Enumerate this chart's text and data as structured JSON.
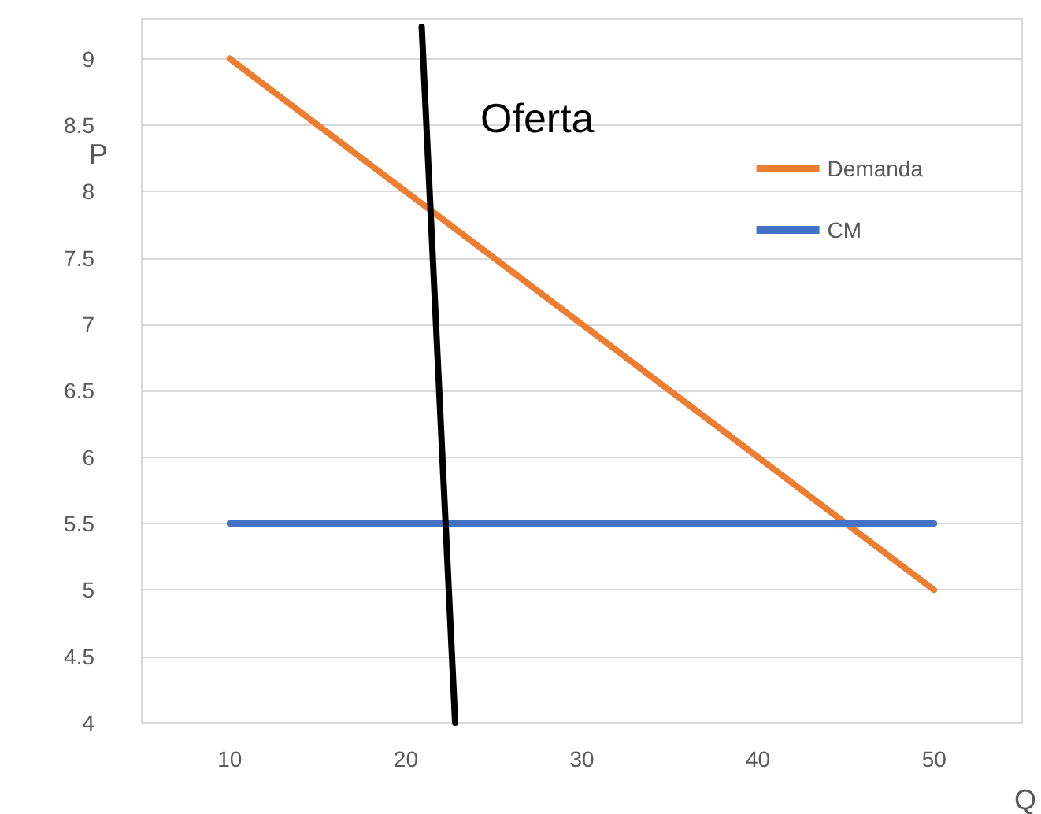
{
  "chart_data": {
    "type": "line",
    "xlabel": "Q",
    "ylabel": "P",
    "xlim": [
      5,
      55
    ],
    "xticks": [
      10,
      20,
      30,
      40,
      50
    ],
    "ylim": [
      4,
      9.3
    ],
    "yticks": [
      4,
      4.5,
      5,
      5.5,
      6,
      6.5,
      7,
      7.5,
      8,
      8.5,
      9
    ],
    "grid": "y",
    "legend": "top right",
    "marker": "none",
    "series": [
      {
        "name": "Demanda",
        "color": "#ed7d31",
        "x": [
          10,
          50
        ],
        "values": [
          9,
          5
        ]
      },
      {
        "name": "CM",
        "color": "#4472c4",
        "x": [
          10,
          50
        ],
        "values": [
          5.5,
          5.5
        ]
      },
      {
        "color": "#000000",
        "x": [
          20.9,
          22.8
        ],
        "values": [
          9.24,
          4
        ]
      }
    ],
    "annotations": [
      "Oferta"
    ]
  }
}
